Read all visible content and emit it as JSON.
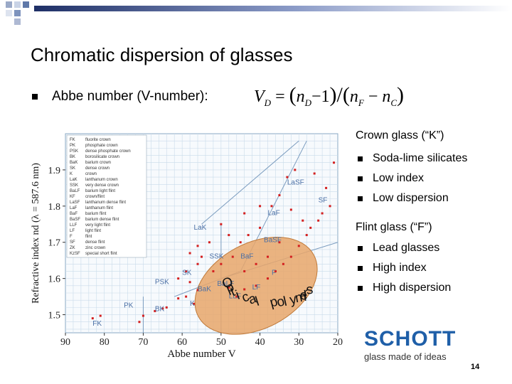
{
  "slide": {
    "title": "Chromatic dispersion of glasses",
    "bullet1": "Abbe number (V-number):",
    "formula": {
      "lhs": "V",
      "lhs_sub": "D",
      "eq": "=",
      "a": "n",
      "a_sub": "D",
      "minus1": "−1",
      "b": "n",
      "b_sub": "F",
      "c": "n",
      "c_sub": "C"
    },
    "page_number": "14"
  },
  "right_panel": {
    "crown_heading": "Crown glass (“K”)",
    "crown_items": [
      "Soda-lime silicates",
      "Low index",
      "Low dispersion"
    ],
    "flint_heading": "Flint glass (“F”)",
    "flint_items": [
      "Lead glasses",
      "High index",
      "High dispersion"
    ]
  },
  "logo": {
    "name": "SCHOTT",
    "tagline": "glass made of ideas"
  },
  "colors": {
    "accent": "#1f5fa8",
    "points": "#d42020",
    "ellipse": "#e8a66a",
    "grid": "#c9dbea",
    "region_text": "#4a6fa5"
  },
  "chart_data": {
    "type": "scatter",
    "xlabel": "Abbe number V",
    "ylabel": "Refractive index nd (λ = 587.6 nm)",
    "xlim": [
      90,
      20
    ],
    "ylim": [
      1.45,
      2.0
    ],
    "x_ticks": [
      "90",
      "80",
      "70",
      "60",
      "50",
      "40",
      "30",
      "20"
    ],
    "y_ticks": [
      "1.9",
      "1.8",
      "1.7",
      "1.6",
      "1.5"
    ],
    "legend": [
      {
        "code": "FK",
        "name": "fluorite crown"
      },
      {
        "code": "PK",
        "name": "phosphate crown"
      },
      {
        "code": "PSK",
        "name": "dense phosphate crown"
      },
      {
        "code": "BK",
        "name": "borosilicate crown"
      },
      {
        "code": "BaK",
        "name": "barium crown"
      },
      {
        "code": "SK",
        "name": "dense crown"
      },
      {
        "code": "K",
        "name": "crown"
      },
      {
        "code": "LaK",
        "name": "lanthanum crown"
      },
      {
        "code": "SSK",
        "name": "very dense crown"
      },
      {
        "code": "BaLF",
        "name": "barium light flint"
      },
      {
        "code": "KF",
        "name": "crown/flint"
      },
      {
        "code": "LaSF",
        "name": "lanthanum dense flint"
      },
      {
        "code": "LaF",
        "name": "lanthanum flint"
      },
      {
        "code": "BaF",
        "name": "barium flint"
      },
      {
        "code": "BaSF",
        "name": "barium dense flint"
      },
      {
        "code": "LLF",
        "name": "very light flint"
      },
      {
        "code": "LF",
        "name": "light flint"
      },
      {
        "code": "F",
        "name": "flint"
      },
      {
        "code": "SF",
        "name": "dense flint"
      },
      {
        "code": "ZK",
        "name": "zinc crown"
      },
      {
        "code": "KzSF",
        "name": "special short flint"
      }
    ],
    "region_labels": [
      {
        "text": "FK",
        "x": 83,
        "y": 1.47
      },
      {
        "text": "PK",
        "x": 75,
        "y": 1.52
      },
      {
        "text": "BK",
        "x": 67,
        "y": 1.51
      },
      {
        "text": "PSK",
        "x": 67,
        "y": 1.585
      },
      {
        "text": "SK",
        "x": 60,
        "y": 1.61
      },
      {
        "text": "BaK",
        "x": 56,
        "y": 1.565
      },
      {
        "text": "K",
        "x": 58,
        "y": 1.525
      },
      {
        "text": "SSK",
        "x": 53,
        "y": 1.655
      },
      {
        "text": "BaF",
        "x": 45,
        "y": 1.655
      },
      {
        "text": "BaLF",
        "x": 51,
        "y": 1.58
      },
      {
        "text": "LLF",
        "x": 48,
        "y": 1.545
      },
      {
        "text": "LF",
        "x": 42,
        "y": 1.57
      },
      {
        "text": "F",
        "x": 37,
        "y": 1.61
      },
      {
        "text": "LaK",
        "x": 57,
        "y": 1.735
      },
      {
        "text": "BaSF",
        "x": 39,
        "y": 1.7
      },
      {
        "text": "LaF",
        "x": 38,
        "y": 1.775
      },
      {
        "text": "LaSF",
        "x": 33,
        "y": 1.86
      },
      {
        "text": "SF",
        "x": 25,
        "y": 1.81
      }
    ],
    "points": [
      {
        "x": 83,
        "y": 1.49
      },
      {
        "x": 81,
        "y": 1.497
      },
      {
        "x": 71,
        "y": 1.48
      },
      {
        "x": 70,
        "y": 1.497
      },
      {
        "x": 67,
        "y": 1.51
      },
      {
        "x": 65,
        "y": 1.517
      },
      {
        "x": 64,
        "y": 1.52
      },
      {
        "x": 61,
        "y": 1.545
      },
      {
        "x": 59,
        "y": 1.55
      },
      {
        "x": 57,
        "y": 1.53
      },
      {
        "x": 56,
        "y": 1.568
      },
      {
        "x": 58,
        "y": 1.59
      },
      {
        "x": 61,
        "y": 1.6
      },
      {
        "x": 59,
        "y": 1.62
      },
      {
        "x": 56,
        "y": 1.64
      },
      {
        "x": 55,
        "y": 1.66
      },
      {
        "x": 52,
        "y": 1.62
      },
      {
        "x": 50,
        "y": 1.64
      },
      {
        "x": 48,
        "y": 1.575
      },
      {
        "x": 46,
        "y": 1.55
      },
      {
        "x": 44,
        "y": 1.57
      },
      {
        "x": 41,
        "y": 1.58
      },
      {
        "x": 38,
        "y": 1.6
      },
      {
        "x": 36,
        "y": 1.62
      },
      {
        "x": 34,
        "y": 1.64
      },
      {
        "x": 32,
        "y": 1.66
      },
      {
        "x": 30,
        "y": 1.69
      },
      {
        "x": 28,
        "y": 1.72
      },
      {
        "x": 27,
        "y": 1.74
      },
      {
        "x": 25,
        "y": 1.76
      },
      {
        "x": 24,
        "y": 1.78
      },
      {
        "x": 22,
        "y": 1.8
      },
      {
        "x": 21,
        "y": 1.92
      },
      {
        "x": 23,
        "y": 1.85
      },
      {
        "x": 26,
        "y": 1.89
      },
      {
        "x": 31,
        "y": 1.9
      },
      {
        "x": 33,
        "y": 1.88
      },
      {
        "x": 35,
        "y": 1.83
      },
      {
        "x": 37,
        "y": 1.8
      },
      {
        "x": 40,
        "y": 1.74
      },
      {
        "x": 43,
        "y": 1.72
      },
      {
        "x": 45,
        "y": 1.7
      },
      {
        "x": 48,
        "y": 1.72
      },
      {
        "x": 50,
        "y": 1.75
      },
      {
        "x": 53,
        "y": 1.7
      },
      {
        "x": 56,
        "y": 1.69
      },
      {
        "x": 58,
        "y": 1.67
      },
      {
        "x": 47,
        "y": 1.66
      },
      {
        "x": 44,
        "y": 1.62
      },
      {
        "x": 41,
        "y": 1.64
      },
      {
        "x": 38,
        "y": 1.66
      },
      {
        "x": 35,
        "y": 1.7
      },
      {
        "x": 29,
        "y": 1.76
      },
      {
        "x": 32,
        "y": 1.79
      },
      {
        "x": 40,
        "y": 1.8
      },
      {
        "x": 44,
        "y": 1.78
      }
    ],
    "annotation": "Optical polymers"
  }
}
